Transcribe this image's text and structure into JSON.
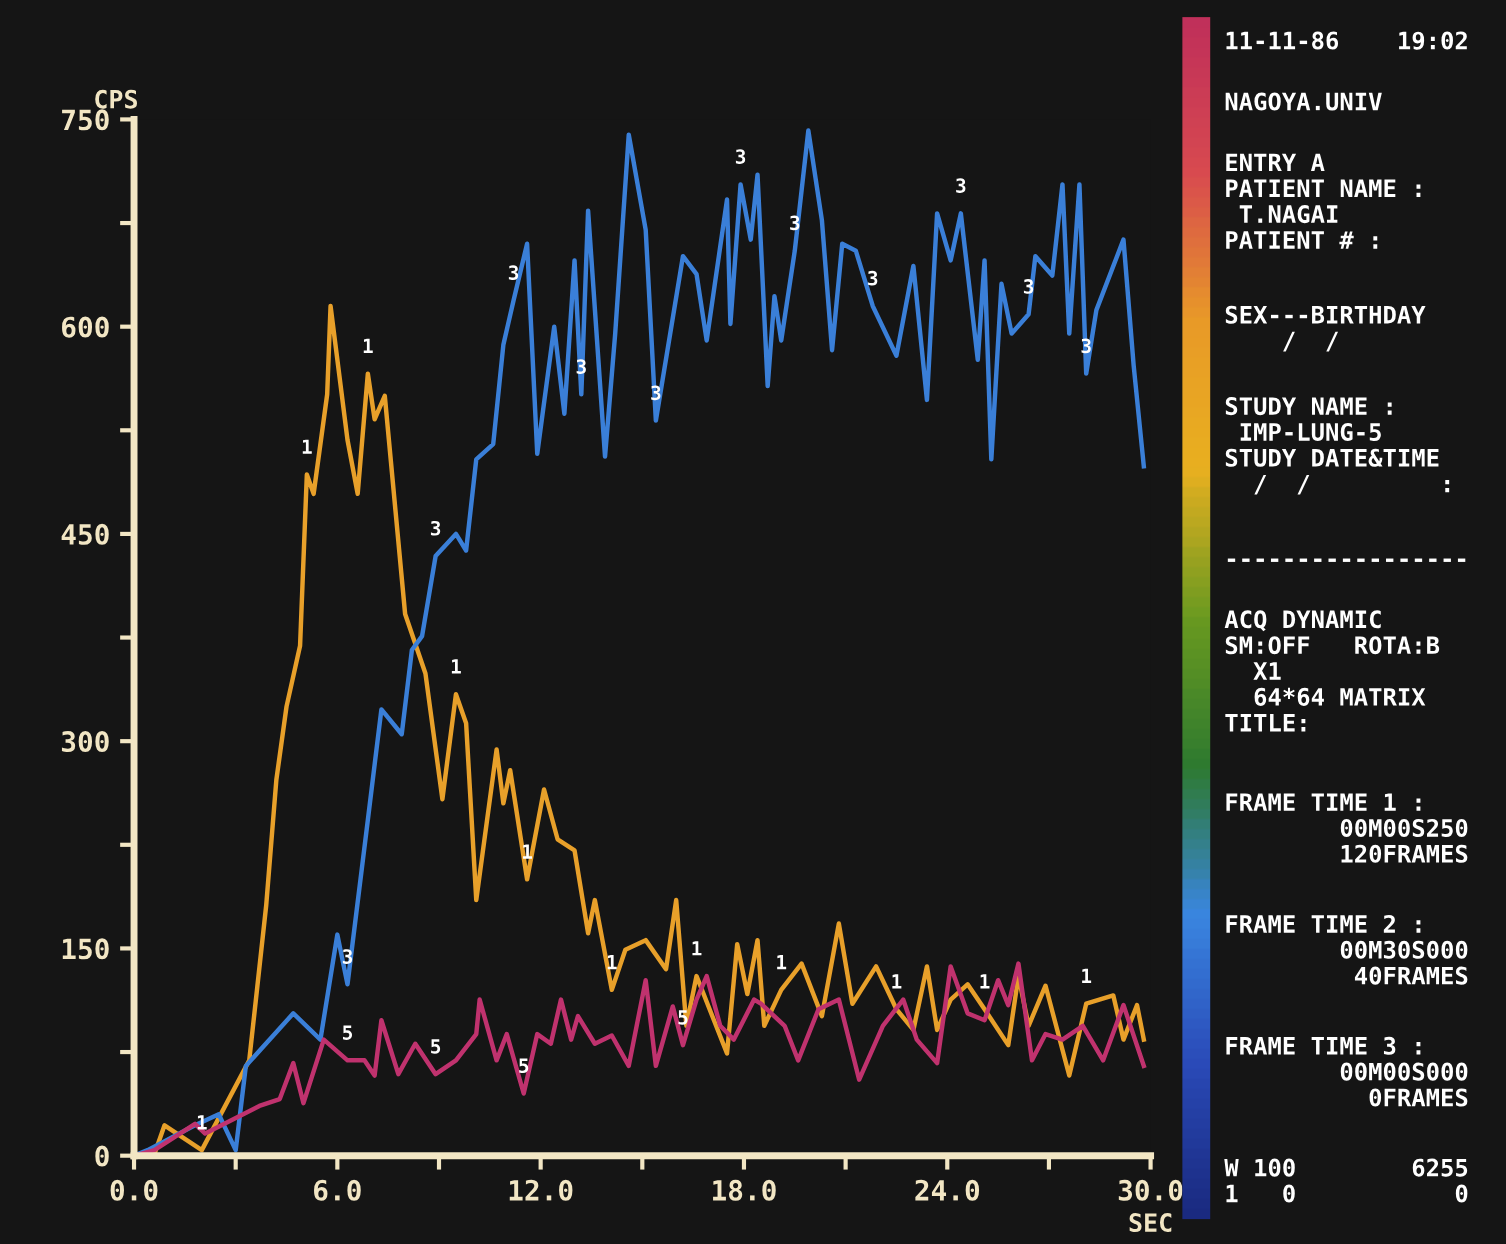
{
  "chart_data": [
    {
      "type": "line",
      "xlabel": "SEC",
      "ylabel": "CPS",
      "xlim": [
        0,
        30
      ],
      "ylim": [
        0,
        750
      ],
      "xticks": [
        {
          "value": 0,
          "label": "0.0"
        },
        {
          "value": 3,
          "label": null
        },
        {
          "value": 6,
          "label": "6.0"
        },
        {
          "value": 9,
          "label": null
        },
        {
          "value": 12,
          "label": "12.0"
        },
        {
          "value": 15,
          "label": null
        },
        {
          "value": 18,
          "label": "18.0"
        },
        {
          "value": 21,
          "label": null
        },
        {
          "value": 24,
          "label": "24.0"
        },
        {
          "value": 27,
          "label": null
        },
        {
          "value": 30,
          "label": "30.0"
        }
      ],
      "yticks": [
        0,
        {
          "value": 75,
          "label": null
        },
        150,
        {
          "value": 225,
          "label": null
        },
        300,
        {
          "value": 375,
          "label": null
        },
        450,
        {
          "value": 525,
          "label": null
        },
        600,
        {
          "value": 675,
          "label": null
        },
        750
      ],
      "grid": false,
      "legend": false,
      "marker": "none",
      "line_style": "solid",
      "series": [
        {
          "name": "1",
          "color": "#e8a02a",
          "x": [
            0,
            0.6,
            0.9,
            2.0,
            3.4,
            3.9,
            4.2,
            4.5,
            4.9,
            5.1,
            5.3,
            5.7,
            5.8,
            6.3,
            6.6,
            6.9,
            7.1,
            7.4,
            8.0,
            8.6,
            9.1,
            9.5,
            9.8,
            10.1,
            10.7,
            10.9,
            11.1,
            11.6,
            12.1,
            12.5,
            13.0,
            13.4,
            13.6,
            14.1,
            14.5,
            15.1,
            15.7,
            16.0,
            16.3,
            16.6,
            17.5,
            17.8,
            18.1,
            18.4,
            18.6,
            19.1,
            19.7,
            20.3,
            20.8,
            21.2,
            21.9,
            22.5,
            23.0,
            23.4,
            23.7,
            24.1,
            24.6,
            25.1,
            25.8,
            26.1,
            26.4,
            26.9,
            27.6,
            28.1,
            28.9,
            29.2,
            29.6,
            29.8
          ],
          "values": [
            0,
            1,
            22,
            4,
            69,
            181,
            272,
            325,
            369,
            493,
            479,
            551,
            615,
            518,
            479,
            566,
            533,
            550,
            392,
            349,
            258,
            334,
            313,
            185,
            294,
            255,
            279,
            200,
            265,
            229,
            221,
            161,
            185,
            120,
            149,
            156,
            135,
            185,
            94,
            130,
            74,
            153,
            117,
            156,
            94,
            120,
            139,
            101,
            168,
            110,
            137,
            106,
            91,
            137,
            91,
            113,
            124,
            106,
            80,
            130,
            94,
            123,
            58,
            110,
            116,
            84,
            109,
            84
          ]
        },
        {
          "name": "3",
          "color": "#3a7fd8",
          "x": [
            0,
            0.4,
            1.8,
            2.5,
            3.0,
            3.3,
            4.7,
            5.5,
            6.0,
            6.3,
            6.9,
            7.3,
            7.9,
            8.2,
            8.5,
            8.9,
            9.5,
            9.8,
            10.1,
            10.6,
            10.9,
            11.2,
            11.6,
            11.9,
            12.4,
            12.7,
            13.0,
            13.2,
            13.4,
            13.9,
            14.2,
            14.6,
            15.1,
            15.4,
            16.2,
            16.6,
            16.9,
            17.5,
            17.6,
            17.9,
            18.2,
            18.4,
            18.7,
            18.9,
            19.1,
            19.5,
            19.9,
            20.3,
            20.6,
            20.9,
            21.3,
            21.8,
            22.5,
            23.0,
            23.4,
            23.7,
            24.1,
            24.4,
            24.9,
            25.1,
            25.3,
            25.6,
            25.9,
            26.4,
            26.6,
            27.1,
            27.4,
            27.6,
            27.9,
            28.1,
            28.4,
            29.2,
            29.5,
            29.8
          ],
          "values": [
            0,
            4,
            22,
            30,
            4,
            65,
            103,
            84,
            160,
            124,
            243,
            323,
            305,
            366,
            376,
            434,
            450,
            438,
            504,
            515,
            587,
            619,
            660,
            508,
            600,
            537,
            648,
            551,
            684,
            506,
            595,
            739,
            670,
            532,
            651,
            638,
            590,
            692,
            602,
            703,
            663,
            710,
            557,
            622,
            590,
            655,
            742,
            677,
            583,
            660,
            655,
            615,
            579,
            644,
            547,
            682,
            648,
            682,
            576,
            648,
            504,
            631,
            595,
            609,
            651,
            637,
            703,
            595,
            703,
            566,
            612,
            663,
            572,
            499
          ]
        },
        {
          "name": "5",
          "color": "#c0326e",
          "x": [
            0,
            0.6,
            1.8,
            2.1,
            3.7,
            4.3,
            4.7,
            5.0,
            5.6,
            6.3,
            6.8,
            7.1,
            7.3,
            7.8,
            8.3,
            8.9,
            9.5,
            10.1,
            10.2,
            10.7,
            11.0,
            11.5,
            11.9,
            12.3,
            12.6,
            12.9,
            13.1,
            13.6,
            14.1,
            14.6,
            15.1,
            15.4,
            15.9,
            16.2,
            16.6,
            16.9,
            17.3,
            17.7,
            18.3,
            18.5,
            19.2,
            19.6,
            20.2,
            20.8,
            21.4,
            22.1,
            22.7,
            23.1,
            23.7,
            24.1,
            24.6,
            25.1,
            25.5,
            25.8,
            26.1,
            26.5,
            26.9,
            27.4,
            28.0,
            28.6,
            29.2,
            29.8
          ],
          "values": [
            0,
            4,
            23,
            16,
            36,
            41,
            67,
            38,
            84,
            69,
            69,
            58,
            98,
            59,
            81,
            59,
            69,
            88,
            113,
            69,
            88,
            45,
            88,
            81,
            113,
            84,
            101,
            81,
            87,
            65,
            127,
            65,
            108,
            80,
            113,
            130,
            94,
            84,
            113,
            110,
            94,
            69,
            106,
            113,
            55,
            94,
            113,
            84,
            67,
            137,
            103,
            98,
            127,
            109,
            139,
            69,
            88,
            84,
            94,
            69,
            109,
            65
          ]
        }
      ]
    },
    {
      "type": "other",
      "annotations": [
        "11-11-86    19:02",
        "NAGOYA.UNIV",
        "ENTRY A\nPATIENT NAME :\n T.NAGAI\nPATIENT # :",
        "SEX---BIRTHDAY\n    /  /",
        "STUDY NAME :\n IMP-LUNG-5\nSTUDY DATE&TIME\n  /  /         :",
        "-----------------",
        "ACQ DYNAMIC\nSM:OFF   ROTA:B\n  X1\n  64*64 MATRIX\nTITLE:",
        "FRAME TIME 1 :\n        00M00S250\n        120FRAMES",
        "FRAME TIME 2 :\n        00M30S000\n         40FRAMES",
        "FRAME TIME 3 :\n        00M00S000\n          0FRAMES",
        "W 100        6255\n1   0           0"
      ]
    }
  ]
}
